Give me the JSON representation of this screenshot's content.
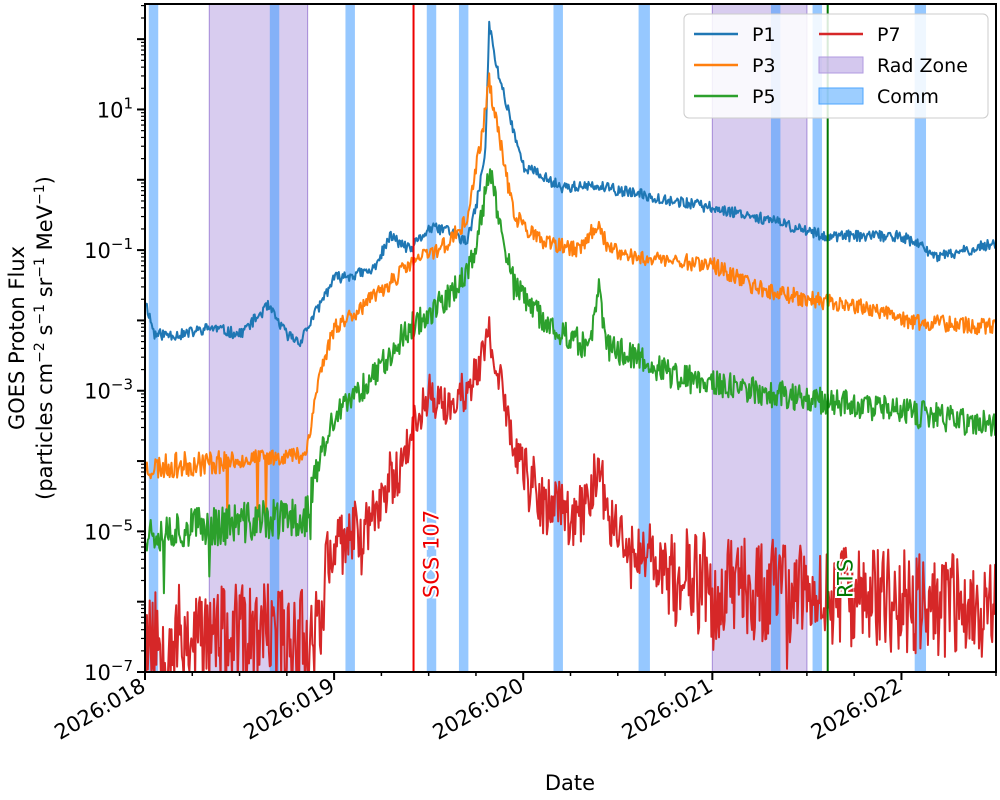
{
  "chart_data": {
    "type": "line",
    "yscale": "log",
    "xlabel": "Date",
    "ylabel_line1": "GOES Proton Flux",
    "ylabel_line2_parts": [
      "(particles cm",
      "−2",
      " s",
      "−1",
      " sr",
      "−1",
      " MeV",
      "−1",
      ")"
    ],
    "xlim": [
      18.0,
      22.5
    ],
    "ylim_log10": [
      -7.0,
      2.5
    ],
    "x_ticks": [
      {
        "value": 18,
        "label": "2026:018"
      },
      {
        "value": 19,
        "label": "2026:019"
      },
      {
        "value": 20,
        "label": "2026:020"
      },
      {
        "value": 21,
        "label": "2026:021"
      },
      {
        "value": 22,
        "label": "2026:022"
      }
    ],
    "x_minor_step": 0.25,
    "y_ticks": [
      {
        "log": 1,
        "base": "10",
        "exp": "1"
      },
      {
        "log": -1,
        "base": "10",
        "exp": "−1"
      },
      {
        "log": -3,
        "base": "10",
        "exp": "−3"
      },
      {
        "log": -5,
        "base": "10",
        "exp": "−5"
      },
      {
        "log": -7,
        "base": "10",
        "exp": "−7"
      }
    ],
    "series": [
      {
        "name": "P1",
        "color": "#1f77b4",
        "noise": 0.08,
        "seed": 11,
        "low": -6.0,
        "points": [
          [
            18.0,
            -1.7
          ],
          [
            18.05,
            -2.2
          ],
          [
            18.2,
            -2.2
          ],
          [
            18.35,
            -2.1
          ],
          [
            18.5,
            -2.2
          ],
          [
            18.65,
            -1.8
          ],
          [
            18.75,
            -2.2
          ],
          [
            18.82,
            -2.3
          ],
          [
            18.9,
            -1.9
          ],
          [
            19.0,
            -1.4
          ],
          [
            19.2,
            -1.3
          ],
          [
            19.3,
            -0.8
          ],
          [
            19.4,
            -1.0
          ],
          [
            19.5,
            -0.7
          ],
          [
            19.6,
            -0.7
          ],
          [
            19.7,
            -0.9
          ],
          [
            19.75,
            -0.4
          ],
          [
            19.8,
            0.4
          ],
          [
            19.82,
            2.2
          ],
          [
            19.86,
            1.6
          ],
          [
            19.92,
            1.0
          ],
          [
            20.0,
            0.2
          ],
          [
            20.2,
            -0.1
          ],
          [
            20.4,
            -0.1
          ],
          [
            20.6,
            -0.2
          ],
          [
            20.8,
            -0.3
          ],
          [
            21.0,
            -0.4
          ],
          [
            21.2,
            -0.5
          ],
          [
            21.6,
            -0.8
          ],
          [
            22.0,
            -0.8
          ],
          [
            22.2,
            -1.1
          ],
          [
            22.5,
            -0.9
          ]
        ]
      },
      {
        "name": "P3",
        "color": "#ff7f0e",
        "noise": 0.12,
        "seed": 23,
        "low": -6.0,
        "points": [
          [
            18.0,
            -4.1
          ],
          [
            18.85,
            -3.9
          ],
          [
            18.92,
            -2.8
          ],
          [
            19.0,
            -2.1
          ],
          [
            19.2,
            -1.7
          ],
          [
            19.4,
            -1.2
          ],
          [
            19.6,
            -0.9
          ],
          [
            19.7,
            -0.6
          ],
          [
            19.78,
            0.6
          ],
          [
            19.82,
            1.4
          ],
          [
            19.86,
            0.8
          ],
          [
            19.95,
            -0.5
          ],
          [
            20.1,
            -0.9
          ],
          [
            20.3,
            -1.0
          ],
          [
            20.4,
            -0.6
          ],
          [
            20.45,
            -1.0
          ],
          [
            20.6,
            -1.1
          ],
          [
            21.0,
            -1.2
          ],
          [
            21.2,
            -1.5
          ],
          [
            21.5,
            -1.7
          ],
          [
            21.8,
            -1.8
          ],
          [
            22.0,
            -2.0
          ],
          [
            22.5,
            -2.1
          ]
        ]
      },
      {
        "name": "P5",
        "color": "#2ca02c",
        "noise": 0.2,
        "seed": 37,
        "low": -7.0,
        "points": [
          [
            18.0,
            -5.0
          ],
          [
            18.85,
            -4.8
          ],
          [
            18.92,
            -4.0
          ],
          [
            19.0,
            -3.4
          ],
          [
            19.2,
            -2.8
          ],
          [
            19.4,
            -2.1
          ],
          [
            19.6,
            -1.7
          ],
          [
            19.75,
            -1.1
          ],
          [
            19.82,
            0.2
          ],
          [
            19.86,
            -0.4
          ],
          [
            19.95,
            -1.5
          ],
          [
            20.1,
            -2.0
          ],
          [
            20.35,
            -2.4
          ],
          [
            20.4,
            -1.6
          ],
          [
            20.45,
            -2.4
          ],
          [
            20.6,
            -2.5
          ],
          [
            20.8,
            -2.8
          ],
          [
            21.0,
            -2.9
          ],
          [
            21.2,
            -3.0
          ],
          [
            21.5,
            -3.1
          ],
          [
            22.0,
            -3.3
          ],
          [
            22.5,
            -3.5
          ]
        ]
      },
      {
        "name": "P7",
        "color": "#d62728",
        "noise": 0.3,
        "seed": 53,
        "low": -7.0,
        "points": [
          [
            18.0,
            -6.5
          ],
          [
            18.9,
            -6.5
          ],
          [
            18.95,
            -5.7
          ],
          [
            19.0,
            -5.3
          ],
          [
            19.2,
            -4.8
          ],
          [
            19.35,
            -4.0
          ],
          [
            19.5,
            -3.0
          ],
          [
            19.6,
            -3.3
          ],
          [
            19.75,
            -2.8
          ],
          [
            19.82,
            -2.2
          ],
          [
            19.87,
            -2.8
          ],
          [
            19.95,
            -3.8
          ],
          [
            20.1,
            -4.6
          ],
          [
            20.3,
            -4.8
          ],
          [
            20.4,
            -4.1
          ],
          [
            20.45,
            -4.8
          ],
          [
            20.6,
            -5.2
          ],
          [
            20.8,
            -5.6
          ],
          [
            21.0,
            -5.8
          ],
          [
            22.5,
            -6.1
          ]
        ]
      }
    ],
    "rad_zones": [
      [
        18.34,
        18.86
      ],
      [
        21.0,
        21.5
      ]
    ],
    "comm_windows": [
      [
        18.02,
        18.07
      ],
      [
        18.66,
        18.71
      ],
      [
        19.06,
        19.11
      ],
      [
        19.49,
        19.54
      ],
      [
        19.66,
        19.71
      ],
      [
        20.16,
        20.21
      ],
      [
        20.61,
        20.67
      ],
      [
        21.31,
        21.36
      ],
      [
        21.53,
        21.58
      ],
      [
        22.07,
        22.13
      ]
    ],
    "events": [
      {
        "x": 19.42,
        "label": "SCS 107",
        "color": "#ee0000"
      },
      {
        "x": 21.61,
        "label": "RTS",
        "color": "#007700"
      }
    ],
    "legend": [
      {
        "label": "P1",
        "kind": "line",
        "color": "#1f77b4"
      },
      {
        "label": "P3",
        "kind": "line",
        "color": "#ff7f0e"
      },
      {
        "label": "P5",
        "kind": "line",
        "color": "#2ca02c"
      },
      {
        "label": "P7",
        "kind": "line",
        "color": "#d62728"
      },
      {
        "label": "Rad Zone",
        "kind": "patch",
        "color": "#b19ae0"
      },
      {
        "label": "Comm",
        "kind": "patch",
        "color": "#4da6ff"
      }
    ],
    "legend_position": "top-right"
  }
}
